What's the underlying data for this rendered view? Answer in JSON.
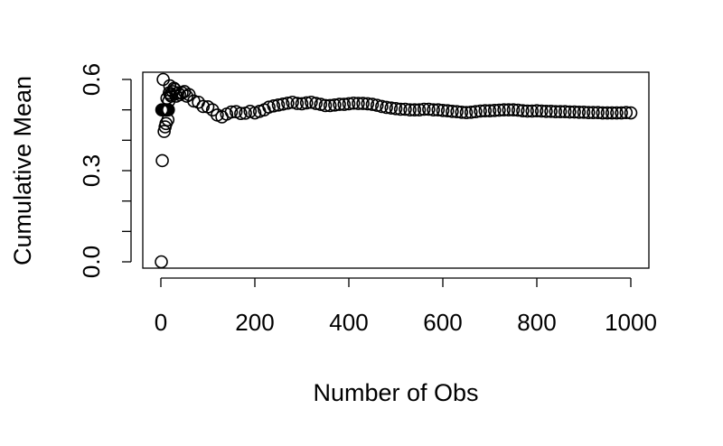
{
  "chart_data": {
    "type": "scatter",
    "title": "",
    "xlabel": "Number of Obs",
    "ylabel": "Cumulative Mean",
    "xlim": [
      0,
      1000
    ],
    "ylim": [
      0,
      0.6
    ],
    "x_ticks": [
      0,
      200,
      400,
      600,
      800,
      1000
    ],
    "x_tick_labels": [
      "0",
      "200",
      "400",
      "600",
      "800",
      "1000"
    ],
    "y_ticks": [
      0.0,
      0.1,
      0.2,
      0.3,
      0.4,
      0.5,
      0.6
    ],
    "y_tick_labels": [
      "0.0",
      "",
      "",
      "0.3",
      "",
      "",
      "0.6"
    ],
    "grid": false,
    "marker": "open-circle",
    "series": [
      {
        "x": [
          1,
          2,
          3,
          4,
          5,
          6,
          7,
          8,
          9,
          10,
          11,
          12,
          13,
          14,
          15,
          16,
          17,
          18,
          19,
          20,
          22,
          25,
          28,
          30,
          33,
          36,
          40,
          45,
          50,
          55,
          60,
          70,
          80,
          90,
          100,
          110,
          120,
          130,
          140,
          150,
          160,
          170,
          180,
          190,
          200,
          210,
          220,
          230,
          240,
          250,
          260,
          270,
          280,
          290,
          300,
          310,
          320,
          330,
          340,
          350,
          360,
          370,
          380,
          390,
          400,
          410,
          420,
          430,
          440,
          450,
          460,
          470,
          480,
          490,
          500,
          510,
          520,
          530,
          540,
          550,
          560,
          570,
          580,
          590,
          600,
          610,
          620,
          630,
          640,
          650,
          660,
          670,
          680,
          690,
          700,
          710,
          720,
          730,
          740,
          750,
          760,
          770,
          780,
          790,
          800,
          810,
          820,
          830,
          840,
          850,
          860,
          870,
          880,
          890,
          900,
          910,
          920,
          930,
          940,
          950,
          960,
          970,
          980,
          990,
          1000
        ],
        "y": [
          0.0,
          0.5,
          0.333,
          0.5,
          0.6,
          0.5,
          0.429,
          0.5,
          0.444,
          0.5,
          0.455,
          0.5,
          0.538,
          0.5,
          0.467,
          0.5,
          0.529,
          0.556,
          0.579,
          0.55,
          0.545,
          0.56,
          0.571,
          0.567,
          0.545,
          0.556,
          0.55,
          0.556,
          0.56,
          0.545,
          0.55,
          0.529,
          0.525,
          0.511,
          0.51,
          0.5,
          0.483,
          0.477,
          0.486,
          0.493,
          0.494,
          0.488,
          0.489,
          0.495,
          0.49,
          0.495,
          0.5,
          0.509,
          0.513,
          0.516,
          0.519,
          0.522,
          0.525,
          0.521,
          0.52,
          0.523,
          0.525,
          0.521,
          0.518,
          0.514,
          0.514,
          0.516,
          0.518,
          0.518,
          0.52,
          0.522,
          0.521,
          0.521,
          0.52,
          0.518,
          0.515,
          0.511,
          0.508,
          0.506,
          0.504,
          0.502,
          0.502,
          0.5,
          0.5,
          0.5,
          0.502,
          0.502,
          0.5,
          0.5,
          0.498,
          0.497,
          0.495,
          0.494,
          0.492,
          0.491,
          0.492,
          0.494,
          0.496,
          0.497,
          0.497,
          0.498,
          0.499,
          0.5,
          0.5,
          0.5,
          0.499,
          0.497,
          0.496,
          0.496,
          0.497,
          0.496,
          0.495,
          0.495,
          0.494,
          0.494,
          0.494,
          0.493,
          0.493,
          0.492,
          0.492,
          0.491,
          0.491,
          0.491,
          0.49,
          0.49,
          0.49,
          0.49,
          0.49,
          0.491,
          0.49
        ]
      }
    ]
  }
}
